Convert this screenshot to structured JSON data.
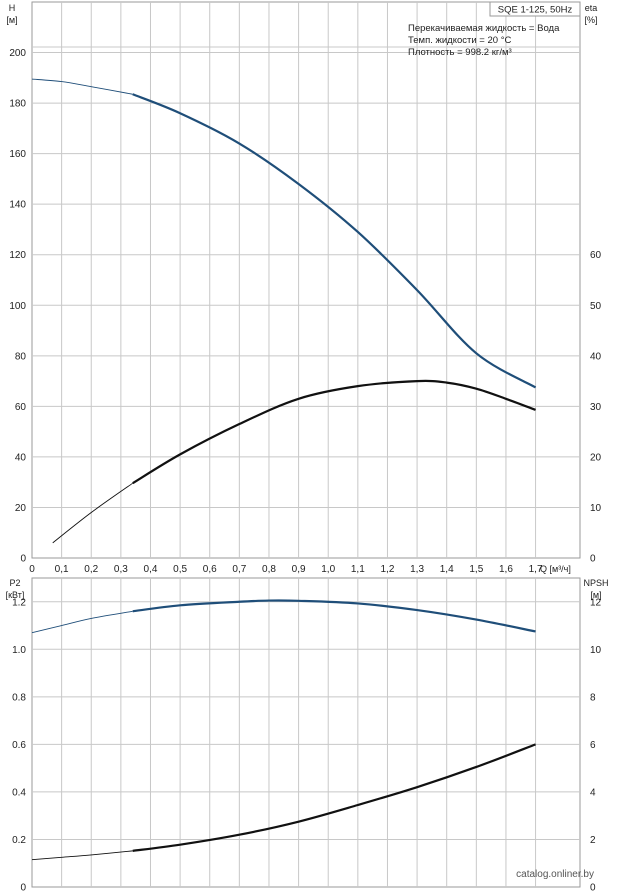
{
  "chart_data": [
    {
      "type": "line",
      "title": "SQE 1-125, 50Hz",
      "info_lines": [
        "Перекачиваемая жидкость = Вода",
        "Темп. жидкости = 20 °C",
        "Плотность = 998.2 кг/м³"
      ],
      "xlabel": "Q [м³/ч]",
      "ylabel_left_name": "H",
      "ylabel_left_unit": "[м]",
      "ylabel_right_name": "eta",
      "ylabel_right_unit": "[%]",
      "xlim": [
        0,
        1.85
      ],
      "ylim_left": [
        0,
        220
      ],
      "ylim_right": [
        0,
        110
      ],
      "x_ticks": [
        0,
        0.1,
        0.2,
        0.3,
        0.4,
        0.5,
        0.6,
        0.7,
        0.8,
        0.9,
        1.0,
        1.1,
        1.2,
        1.3,
        1.4,
        1.5,
        1.6,
        1.7
      ],
      "x_tick_labels": [
        "0",
        "0,1",
        "0,2",
        "0,3",
        "0,4",
        "0,5",
        "0,6",
        "0,7",
        "0,8",
        "0,9",
        "1,0",
        "1,1",
        "1,2",
        "1,3",
        "1,4",
        "1,5",
        "1,6",
        "1,7"
      ],
      "y_ticks_left": [
        0,
        20,
        40,
        60,
        80,
        100,
        120,
        140,
        160,
        180,
        200
      ],
      "y_ticks_right": [
        0,
        10,
        20,
        30,
        40,
        50,
        60
      ],
      "grid": true,
      "series": [
        {
          "color": "#1f4e79",
          "axis": "left",
          "x": [
            0,
            0.1,
            0.2,
            0.34,
            0.5,
            0.7,
            0.9,
            1.1,
            1.3,
            1.5,
            1.7
          ],
          "y": [
            189.5,
            188.5,
            186.5,
            183.5,
            176,
            164,
            148,
            129,
            106,
            81,
            67.5
          ],
          "bold_from": 0.34
        },
        {
          "color": "#111111",
          "axis": "right",
          "x": [
            0.07,
            0.2,
            0.34,
            0.5,
            0.7,
            0.9,
            1.1,
            1.3,
            1.4,
            1.5,
            1.6,
            1.7
          ],
          "y": [
            3,
            9,
            14.8,
            20.5,
            26.5,
            31.5,
            34,
            35,
            34.7,
            33.5,
            31.5,
            29.3
          ],
          "bold_from": 0.34
        }
      ]
    },
    {
      "type": "line",
      "xlabel": "",
      "ylabel_left_name": "P2",
      "ylabel_left_unit": "[кВт]",
      "ylabel_right_name": "NPSH",
      "ylabel_right_unit": "[м]",
      "xlim": [
        0,
        1.85
      ],
      "ylim_left": [
        0,
        1.3
      ],
      "ylim_right": [
        0,
        13
      ],
      "x_ticks": [
        0,
        0.1,
        0.2,
        0.3,
        0.4,
        0.5,
        0.6,
        0.7,
        0.8,
        0.9,
        1.0,
        1.1,
        1.2,
        1.3,
        1.4,
        1.5,
        1.6,
        1.7
      ],
      "y_ticks_left": [
        0,
        0.2,
        0.4,
        0.6,
        0.8,
        1.0,
        1.2
      ],
      "y_tick_labels_left": [
        "0",
        "0.2",
        "0.4",
        "0.6",
        "0.8",
        "1.0",
        "1.2"
      ],
      "y_ticks_right": [
        0,
        2,
        4,
        6,
        8,
        10,
        12
      ],
      "grid": true,
      "series": [
        {
          "color": "#1f4e79",
          "axis": "left",
          "x": [
            0,
            0.1,
            0.2,
            0.34,
            0.5,
            0.7,
            0.8,
            0.9,
            1.1,
            1.3,
            1.5,
            1.7
          ],
          "y": [
            1.07,
            1.1,
            1.13,
            1.16,
            1.185,
            1.2,
            1.205,
            1.204,
            1.193,
            1.165,
            1.125,
            1.075
          ],
          "bold_from": 0.34
        },
        {
          "color": "#111111",
          "axis": "left",
          "x": [
            0,
            0.1,
            0.2,
            0.34,
            0.5,
            0.7,
            0.9,
            1.1,
            1.3,
            1.5,
            1.7
          ],
          "y": [
            0.115,
            0.125,
            0.135,
            0.152,
            0.178,
            0.22,
            0.275,
            0.345,
            0.42,
            0.505,
            0.6
          ],
          "bold_from": 0.34
        }
      ]
    }
  ],
  "watermark": "catalog.onliner.by"
}
